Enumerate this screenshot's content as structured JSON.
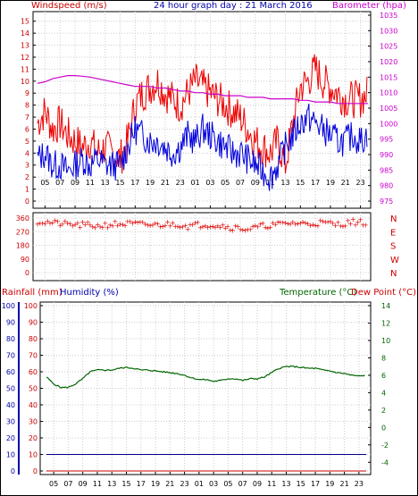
{
  "header": {
    "title": "24 hour graph day : 21 March 2016",
    "wind_label": "Windspeed (m/s)",
    "baro_label": "Barometer (hpa)"
  },
  "lower_header": {
    "rain_label": "Rainfall (mm)",
    "hum_label": "Humidity (%)",
    "temp_label": "Temperature (°C)",
    "dew_label": "Dew Point (°C)"
  },
  "colors": {
    "wind_gust": "#ee0000",
    "wind_avg": "#0000dd",
    "barometer": "#cc00cc",
    "direction": "#dd0000",
    "temperature": "#006600",
    "humidity": "#000088",
    "rain": "#cc0000",
    "axis_left": "#cc0000",
    "axis_right_top": "#cc00cc",
    "axis_right_bottom": "#006600",
    "axis_humidity": "#0000aa"
  },
  "x_ticks": [
    "05",
    "07",
    "09",
    "11",
    "13",
    "15",
    "17",
    "19",
    "21",
    "23",
    "01",
    "03",
    "05",
    "07",
    "09",
    "11",
    "13",
    "15",
    "17",
    "19",
    "21",
    "23"
  ],
  "chart_data": [
    {
      "type": "line",
      "name": "wind-barometer",
      "x_label": "hour",
      "x": [
        4,
        5,
        6,
        7,
        8,
        9,
        10,
        11,
        12,
        13,
        14,
        15,
        16,
        17,
        18,
        19,
        20,
        21,
        22,
        23,
        24,
        25,
        26,
        27,
        28,
        29,
        30,
        31,
        32,
        33,
        34,
        35,
        36,
        37,
        38,
        39,
        40,
        41,
        42,
        43,
        44,
        45,
        46,
        47,
        48
      ],
      "series": [
        {
          "name": "Windspeed (gust)",
          "axis": "left",
          "values": [
            6.5,
            7.5,
            6.0,
            6.5,
            5.5,
            5.0,
            4.5,
            5.0,
            4.0,
            4.5,
            4.0,
            3.5,
            5.0,
            8.0,
            9.0,
            9.5,
            10.0,
            9.0,
            8.5,
            8.0,
            9.0,
            10.0,
            9.5,
            9.0,
            8.5,
            8.0,
            7.5,
            7.0,
            6.0,
            5.0,
            4.5,
            4.0,
            5.0,
            3.0,
            6.5,
            9.5,
            10.0,
            11.0,
            10.0,
            9.5,
            9.0,
            8.5,
            8.5,
            8.5,
            9.0
          ]
        },
        {
          "name": "Windspeed (average)",
          "axis": "left",
          "values": [
            3.5,
            4.0,
            3.0,
            3.0,
            2.5,
            3.0,
            3.5,
            3.0,
            3.5,
            3.0,
            3.0,
            3.0,
            4.5,
            6.0,
            5.5,
            5.0,
            5.0,
            4.5,
            4.0,
            4.5,
            5.5,
            5.0,
            6.0,
            5.5,
            5.0,
            4.5,
            4.0,
            4.0,
            3.5,
            3.0,
            2.5,
            2.0,
            3.0,
            4.5,
            5.5,
            6.5,
            7.0,
            6.5,
            6.0,
            5.5,
            5.0,
            5.0,
            5.5,
            5.0,
            5.5
          ]
        },
        {
          "name": "Barometer",
          "axis": "right",
          "values": [
            1013.0,
            1013.5,
            1014.5,
            1015.0,
            1015.5,
            1015.5,
            1015.3,
            1015.0,
            1014.5,
            1014.0,
            1013.5,
            1013.0,
            1012.5,
            1012.0,
            1012.0,
            1012.0,
            1011.5,
            1011.5,
            1011.0,
            1010.5,
            1010.5,
            1010.0,
            1010.0,
            1009.5,
            1009.5,
            1009.0,
            1009.0,
            1009.0,
            1008.5,
            1008.5,
            1008.5,
            1008.0,
            1008.0,
            1008.0,
            1008.0,
            1007.5,
            1007.5,
            1007.0,
            1007.0,
            1007.0,
            1006.5,
            1006.5,
            1006.5,
            1006.5,
            1006.5
          ]
        }
      ],
      "y_left_ticks": [
        0,
        1,
        2,
        3,
        4,
        5,
        6,
        7,
        8,
        9,
        10,
        11,
        12,
        13,
        14,
        15
      ],
      "y_left_range": [
        0,
        15.5
      ],
      "y_right_ticks": [
        975,
        980,
        985,
        990,
        995,
        1000,
        1005,
        1010,
        1015,
        1020,
        1025,
        1030,
        1035
      ],
      "y_right_range": [
        975,
        1035
      ]
    },
    {
      "type": "scatter",
      "name": "wind-direction",
      "y_ticks": [
        0,
        90,
        180,
        270,
        360
      ],
      "y_labels_right": [
        "N",
        "W",
        "S",
        "E",
        "N"
      ],
      "y_range": [
        0,
        360
      ],
      "x": [
        4,
        6,
        8,
        10,
        12,
        14,
        16,
        18,
        20,
        22,
        24,
        26,
        28,
        30,
        32,
        34,
        36,
        38,
        40,
        42,
        44,
        46,
        48
      ],
      "values": [
        340,
        330,
        320,
        315,
        310,
        320,
        325,
        320,
        315,
        325,
        310,
        320,
        315,
        300,
        290,
        310,
        320,
        330,
        325,
        330,
        320,
        335,
        330
      ]
    },
    {
      "type": "line",
      "name": "rain-humidity-temperature",
      "x": [
        4,
        5,
        6,
        7,
        8,
        9,
        10,
        11,
        12,
        13,
        14,
        15,
        16,
        17,
        18,
        19,
        20,
        21,
        22,
        23,
        24,
        25,
        26,
        27,
        28,
        29,
        30,
        31,
        32,
        33,
        34,
        35,
        36,
        37,
        38,
        39,
        40,
        41,
        42,
        43,
        44,
        45,
        46,
        47,
        48
      ],
      "series": [
        {
          "name": "Temperature",
          "axis": "right",
          "values": [
            5.8,
            5.0,
            4.6,
            4.6,
            5.0,
            5.6,
            6.4,
            6.6,
            6.6,
            6.6,
            6.8,
            6.9,
            6.8,
            6.6,
            6.6,
            6.5,
            6.4,
            6.3,
            6.2,
            6.0,
            5.7,
            5.5,
            5.5,
            5.3,
            5.4,
            5.6,
            5.6,
            5.4,
            5.6,
            5.6,
            5.8,
            6.3,
            6.8,
            7.0,
            7.0,
            6.9,
            6.8,
            6.8,
            6.6,
            6.5,
            6.3,
            6.2,
            6.0,
            5.9,
            6.0
          ]
        },
        {
          "name": "Humidity",
          "axis": "left",
          "values": [
            10,
            10,
            10,
            10,
            10,
            10,
            10,
            10,
            10,
            10,
            10,
            10,
            10,
            10,
            10,
            10,
            10,
            10,
            10,
            10,
            10,
            10,
            10,
            10,
            10,
            10,
            10,
            10,
            10,
            10,
            10,
            10,
            10,
            10,
            10,
            10,
            10,
            10,
            10,
            10,
            10,
            10,
            10,
            10,
            10
          ]
        },
        {
          "name": "Rainfall",
          "axis": "left",
          "values": [
            0,
            0,
            0,
            0,
            0,
            0,
            0,
            0,
            0,
            0,
            0,
            0,
            0,
            0,
            0,
            0,
            0,
            0,
            0,
            0,
            0,
            0,
            0,
            0,
            0,
            0,
            0,
            0,
            0,
            0,
            0,
            0,
            0,
            0,
            0,
            0,
            0,
            0,
            0,
            0,
            0,
            0,
            0,
            0,
            0
          ]
        }
      ],
      "y_left_ticks": [
        0,
        10,
        20,
        30,
        40,
        50,
        60,
        70,
        80,
        90,
        100
      ],
      "y_left_range": [
        0,
        100
      ],
      "y_right_ticks": [
        -4,
        -2,
        0,
        2,
        4,
        6,
        8,
        10,
        12,
        14
      ],
      "y_right_range": [
        -5,
        14
      ]
    }
  ]
}
